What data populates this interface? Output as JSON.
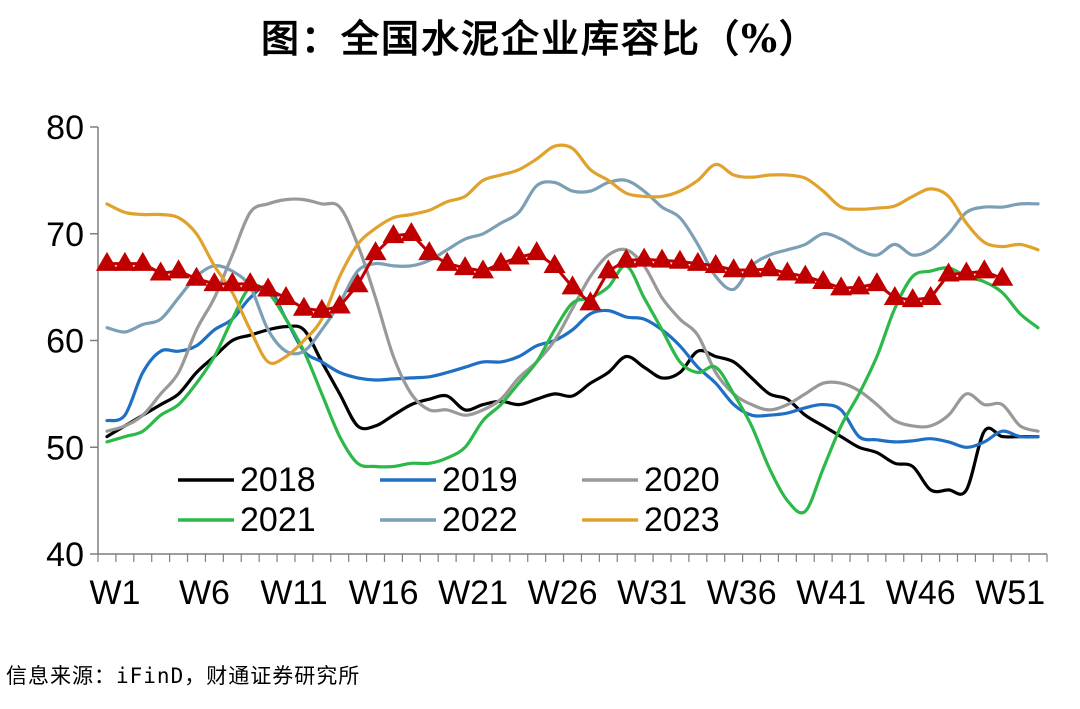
{
  "chart_data": {
    "type": "line",
    "title": "图：全国水泥企业库容比（%）",
    "ylim": [
      40,
      80
    ],
    "yticks": [
      40,
      50,
      60,
      70,
      80
    ],
    "xtick_labels": [
      "W1",
      "W6",
      "W11",
      "W16",
      "W21",
      "W26",
      "W31",
      "W36",
      "W41",
      "W46",
      "W51"
    ],
    "xtick_weeks": [
      1,
      6,
      11,
      16,
      21,
      26,
      31,
      36,
      41,
      46,
      51
    ],
    "x_weeks_total": 53,
    "legend_placement": "bottom-left",
    "series": [
      {
        "name": "2018",
        "color": "#000000",
        "values": [
          51,
          52,
          53,
          54,
          55,
          57,
          58.5,
          60,
          60.5,
          61,
          61.3,
          61,
          58,
          55,
          52,
          52,
          53,
          54,
          54.5,
          54.8,
          53.5,
          54,
          54.3,
          54,
          54.5,
          55,
          54.8,
          56,
          57,
          58.5,
          57.5,
          56.5,
          57,
          59,
          58.5,
          58,
          56.5,
          55,
          54.5,
          53,
          52,
          51,
          50,
          49.5,
          48.5,
          48.2,
          46,
          46,
          46,
          51.5,
          51,
          51,
          51
        ]
      },
      {
        "name": "2019",
        "color": "#1f6fc4",
        "values": [
          52.5,
          53,
          57,
          59,
          59,
          59.5,
          61,
          62,
          64,
          65,
          62,
          59,
          58,
          57,
          56.5,
          56.3,
          56.4,
          56.5,
          56.6,
          57,
          57.5,
          58,
          58,
          58.5,
          59.5,
          60,
          61,
          62.5,
          62.8,
          62.2,
          62,
          61,
          59.5,
          57.5,
          56,
          54,
          53,
          53,
          53.2,
          53.7,
          54,
          53.5,
          51,
          50.7,
          50.5,
          50.6,
          50.8,
          50.5,
          50,
          50.5,
          51.5,
          51,
          51
        ]
      },
      {
        "name": "2020",
        "color": "#999999",
        "values": [
          51.5,
          52,
          53,
          55,
          57,
          61,
          64,
          68,
          72,
          72.8,
          73.2,
          73.2,
          72.8,
          72.5,
          69,
          64,
          58.5,
          55,
          53.5,
          53.5,
          53,
          53.5,
          54.5,
          56.5,
          58,
          60,
          63,
          66,
          68,
          68.5,
          67,
          64,
          62,
          60.5,
          57,
          55,
          54,
          53.5,
          54,
          55,
          56,
          56,
          55.3,
          54,
          52.5,
          52,
          52,
          53,
          55,
          54,
          54,
          52,
          51.5
        ]
      },
      {
        "name": "2021",
        "color": "#2db84a",
        "values": [
          50.5,
          51,
          51.5,
          53,
          54,
          56,
          58.5,
          62,
          65,
          64.5,
          62,
          59,
          55,
          51,
          48.5,
          48.2,
          48.2,
          48.5,
          48.5,
          49,
          50,
          52.5,
          54,
          56,
          58,
          61,
          63.5,
          64,
          65,
          67,
          64,
          61,
          58,
          57,
          57.5,
          55,
          52,
          48,
          45,
          44,
          48,
          52,
          55,
          58.5,
          63,
          66,
          66.5,
          66.8,
          66,
          65.5,
          64.5,
          62.5,
          61.2
        ]
      },
      {
        "name": "2022",
        "color": "#7b9fb5",
        "values": [
          61.2,
          60.8,
          61.5,
          62,
          64,
          66,
          67,
          66.5,
          65,
          61,
          59,
          59,
          61,
          63.5,
          66.5,
          67.2,
          67,
          67,
          67.5,
          68.5,
          69.5,
          70,
          71,
          72,
          74.5,
          74.8,
          74,
          74,
          74.8,
          75,
          74,
          72.5,
          71.5,
          69,
          66,
          64.8,
          67,
          68,
          68.5,
          69,
          70,
          69.5,
          68.5,
          68,
          69,
          68,
          68.5,
          70,
          72,
          72.5,
          72.5,
          72.8,
          72.8
        ]
      },
      {
        "name": "2023",
        "color": "#e0a22c",
        "values": [
          72.8,
          72,
          71.8,
          71.8,
          71.5,
          70,
          67,
          64.5,
          61,
          58,
          58.5,
          60,
          62,
          66,
          69,
          70.5,
          71.5,
          71.8,
          72.2,
          73,
          73.5,
          75,
          75.5,
          76,
          77,
          78.2,
          78,
          76,
          75,
          73.8,
          73.5,
          73.5,
          74,
          75,
          76.5,
          75.5,
          75.3,
          75.5,
          75.5,
          75.2,
          74,
          72.5,
          72.3,
          72.4,
          72.6,
          73.5,
          74.2,
          73.5,
          71,
          69.2,
          68.8,
          69,
          68.5
        ]
      },
      {
        "name": "",
        "color": "#c00000",
        "marker": "triangle",
        "values": [
          67.2,
          67.2,
          67.2,
          66.3,
          66.5,
          65.8,
          65.3,
          65.3,
          65.3,
          64.8,
          64,
          63,
          62.8,
          63.2,
          65.2,
          68.2,
          69.8,
          70,
          68.2,
          67.2,
          66.8,
          66.5,
          67.2,
          67.8,
          68.2,
          67,
          65,
          63.5,
          66.5,
          67.5,
          67.6,
          67.5,
          67.4,
          67.2,
          67,
          66.6,
          66.6,
          66.7,
          66.3,
          66,
          65.5,
          64.9,
          65,
          65.3,
          64,
          63.8,
          64,
          66.2,
          66.3,
          66.5,
          65.8
        ]
      }
    ]
  },
  "source_note": "信息来源：iFinD，财通证券研究所"
}
